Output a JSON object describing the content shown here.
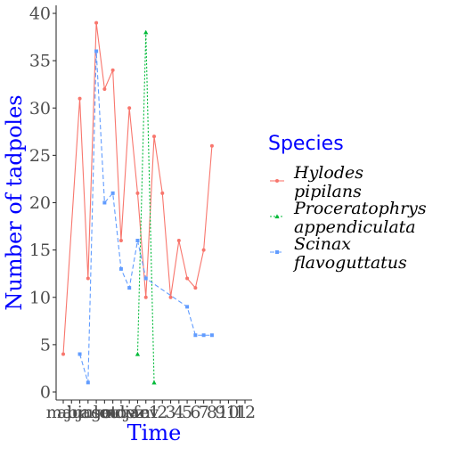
{
  "chart_data": {
    "type": "line",
    "xlabel": "Time",
    "ylabel": "Number of tadpoles",
    "ylim": [
      0,
      40
    ],
    "y_ticks": [
      "0",
      "5",
      "10",
      "15",
      "20",
      "25",
      "30",
      "35",
      "40"
    ],
    "x_categories": [
      "mar",
      "abr",
      "jun",
      "jul",
      "ago",
      "set",
      "out",
      "nov",
      "dez",
      "jan",
      "fev",
      "1",
      "2",
      "3",
      "4",
      "5",
      "6",
      "7",
      "8",
      "9",
      "10",
      "11",
      "12"
    ],
    "x_tick_labels": [
      "mar",
      "abr",
      "jun",
      "jul",
      "ago",
      "set",
      "out",
      "nov",
      "dez",
      "jan",
      "fev",
      "1",
      "2",
      "3",
      "4",
      "5",
      "6",
      "7",
      "8",
      "9",
      "10",
      "11",
      "12"
    ],
    "legend": {
      "title": "Species",
      "position": "right"
    },
    "grid": false,
    "series": [
      {
        "name": "Hylodes pipilans",
        "legend_lines": [
          "Hylodes",
          "pipilans"
        ],
        "color": "#F8766D",
        "dash": "solid",
        "marker": "circle",
        "points": [
          [
            0,
            4
          ],
          [
            2,
            31
          ],
          [
            3,
            12
          ],
          [
            4,
            39
          ],
          [
            5,
            32
          ],
          [
            6,
            34
          ],
          [
            7,
            16
          ],
          [
            8,
            30
          ],
          [
            9,
            21
          ],
          [
            10,
            10
          ],
          [
            11,
            27
          ],
          [
            12,
            21
          ],
          [
            13,
            10
          ],
          [
            14,
            16
          ],
          [
            15,
            12
          ],
          [
            16,
            11
          ],
          [
            17,
            15
          ],
          [
            18,
            26
          ]
        ]
      },
      {
        "name": "Proceratophrys appendiculata",
        "legend_lines": [
          "Proceratophrys",
          "appendiculata"
        ],
        "color": "#00BA38",
        "dash": "dotted",
        "marker": "triangle",
        "points": [
          [
            9,
            4
          ],
          [
            10,
            38
          ],
          [
            11,
            1
          ]
        ]
      },
      {
        "name": "Scinax flavoguttatus",
        "legend_lines": [
          "Scinax",
          "flavoguttatus"
        ],
        "color": "#619CFF",
        "dash": "dashed",
        "marker": "square",
        "points": [
          [
            2,
            4
          ],
          [
            3,
            1
          ],
          [
            4,
            36
          ],
          [
            5,
            20
          ],
          [
            6,
            21
          ],
          [
            7,
            13
          ],
          [
            8,
            11
          ],
          [
            9,
            16
          ],
          [
            10,
            12
          ],
          [
            15,
            9
          ],
          [
            16,
            6
          ],
          [
            17,
            6
          ],
          [
            18,
            6
          ]
        ]
      }
    ]
  }
}
